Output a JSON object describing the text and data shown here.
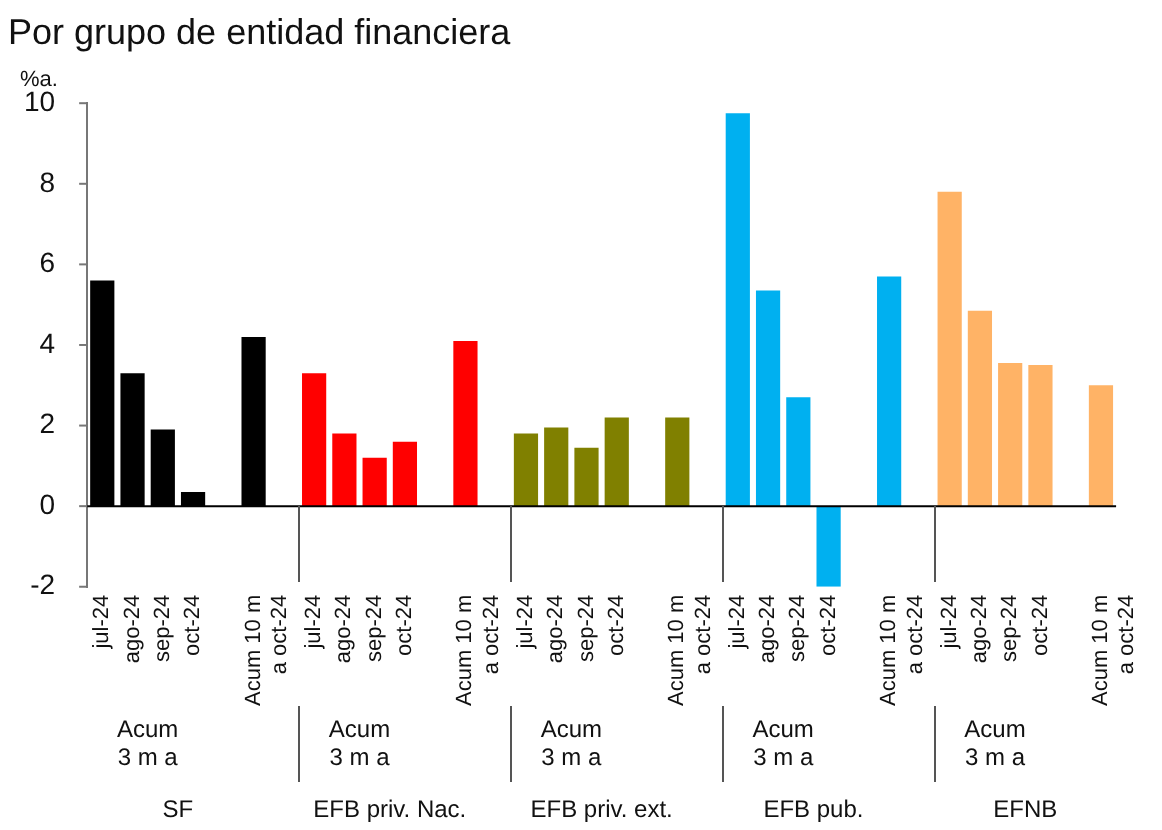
{
  "chart_data": {
    "type": "bar",
    "title": "Por grupo de entidad financiera",
    "ylabel": "%a.",
    "categories": [
      "jul-24",
      "ago-24",
      "sep-24",
      "oct-24",
      null,
      "Acum 10 m\na oct-24",
      null,
      "jul-24",
      "ago-24",
      "sep-24",
      "oct-24",
      null,
      "Acum 10 m\na oct-24",
      null,
      "jul-24",
      "ago-24",
      "sep-24",
      "oct-24",
      null,
      "Acum 10 m\na oct-24",
      null,
      "jul-24",
      "ago-24",
      "sep-24",
      "oct-24",
      null,
      "Acum 10 m\na oct-24",
      null,
      "jul-24",
      "ago-24",
      "sep-24",
      "oct-24",
      null,
      "Acum 10 m\na oct-24"
    ],
    "series": [
      {
        "color": "#000000",
        "values": [
          5.6,
          3.3,
          1.9,
          0.35,
          null,
          4.2,
          null,
          null,
          null,
          null,
          null,
          null,
          null,
          null,
          null,
          null,
          null,
          null,
          null,
          null,
          null,
          null,
          null,
          null,
          null,
          null,
          null,
          null,
          null,
          null,
          null,
          null,
          null,
          null
        ]
      },
      {
        "color": "#ff0000",
        "values": [
          null,
          null,
          null,
          null,
          null,
          null,
          null,
          3.3,
          1.8,
          1.2,
          1.6,
          null,
          4.1,
          null,
          null,
          null,
          null,
          null,
          null,
          null,
          null,
          null,
          null,
          null,
          null,
          null,
          null,
          null,
          null,
          null,
          null,
          null,
          null,
          null
        ]
      },
      {
        "color": "#808000",
        "values": [
          null,
          null,
          null,
          null,
          null,
          null,
          null,
          null,
          null,
          null,
          null,
          null,
          null,
          null,
          1.8,
          1.95,
          1.45,
          2.2,
          null,
          2.2,
          null,
          null,
          null,
          null,
          null,
          null,
          null,
          null,
          null,
          null,
          null,
          null,
          null,
          null
        ]
      },
      {
        "color": "#00b0f0",
        "values": [
          null,
          null,
          null,
          null,
          null,
          null,
          null,
          null,
          null,
          null,
          null,
          null,
          null,
          null,
          null,
          null,
          null,
          null,
          null,
          null,
          null,
          9.75,
          5.35,
          2.7,
          -2.0,
          null,
          5.7,
          null,
          null,
          null,
          null,
          null,
          null,
          null
        ]
      },
      {
        "color": "#ffb366",
        "values": [
          null,
          null,
          null,
          null,
          null,
          null,
          null,
          null,
          null,
          null,
          null,
          null,
          null,
          null,
          null,
          null,
          null,
          null,
          null,
          null,
          null,
          null,
          null,
          null,
          null,
          null,
          null,
          null,
          7.8,
          4.85,
          3.55,
          3.5,
          null,
          3.0
        ]
      }
    ],
    "annotations": [
      "Acum\n3 m a",
      "SF",
      "Acum\n3 m a",
      "EFB priv. Nac.",
      "Acum\n3 m a",
      "EFB priv. ext.",
      "Acum\n3 m a",
      "EFB pub.",
      "Acum\n3 m a",
      "EFNB"
    ],
    "ylim": [
      -2,
      10
    ],
    "yticks": [
      -2,
      0,
      2,
      4,
      6,
      8,
      10
    ],
    "legend": false
  }
}
